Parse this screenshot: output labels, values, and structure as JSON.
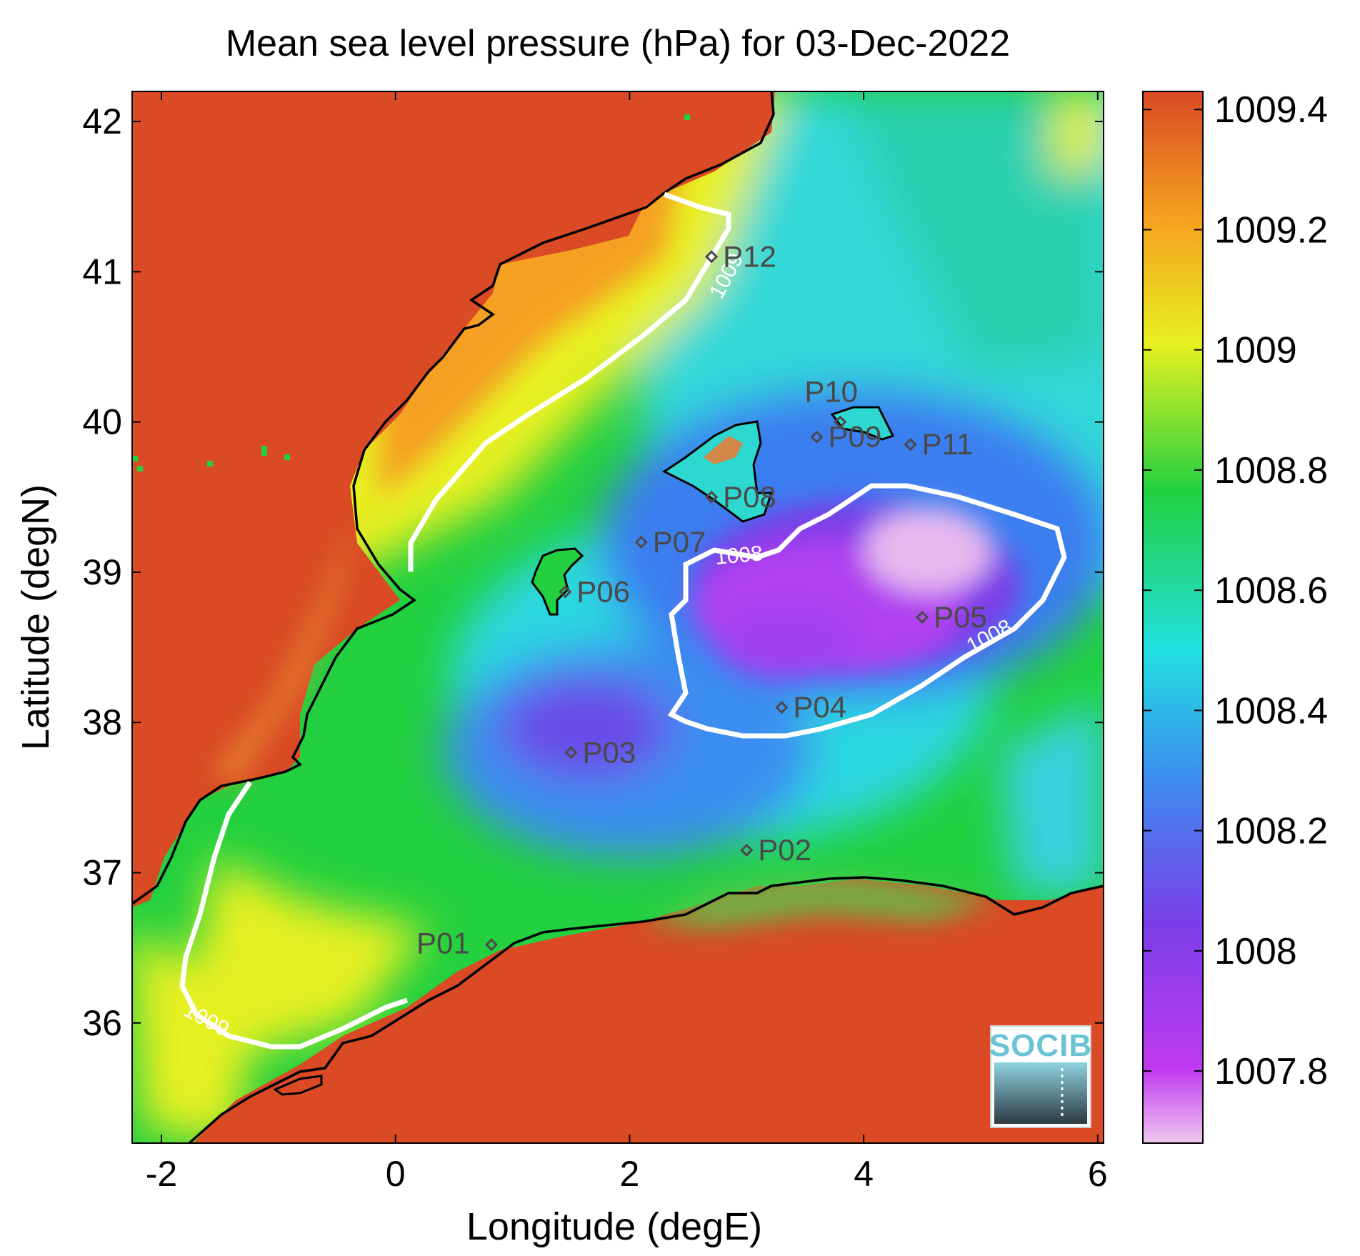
{
  "map": {
    "title": "Mean sea level pressure (hPa) for 03-Dec-2022",
    "xlabel": "Longitude (degE)",
    "ylabel": "Latitude (degN)",
    "xlim": [
      -2.25,
      6.05
    ],
    "ylim": [
      35.2,
      42.2
    ],
    "x_ticks": [
      "-2",
      "0",
      "2",
      "4",
      "6"
    ],
    "y_ticks": [
      "36",
      "37",
      "38",
      "39",
      "40",
      "41",
      "42"
    ],
    "land_color": "#d94a25",
    "colorbar": {
      "range": [
        1007.68,
        1009.43
      ],
      "ticks": [
        "1007.8",
        "1008",
        "1008.2",
        "1008.4",
        "1008.6",
        "1008.8",
        "1009",
        "1009.2",
        "1009.4"
      ],
      "colors": [
        "#f0c8f0",
        "#c03af0",
        "#7a3ee8",
        "#3b8ef0",
        "#22e0e0",
        "#22d040",
        "#e8f020",
        "#f5a020",
        "#d94a25"
      ]
    },
    "contours": [
      {
        "label": "1009"
      },
      {
        "label": "1009"
      },
      {
        "label": "1008"
      },
      {
        "label": "1008"
      }
    ],
    "stations": [
      {
        "id": "P01",
        "lon": 0.82,
        "lat": 36.52
      },
      {
        "id": "P02",
        "lon": 3.0,
        "lat": 37.15
      },
      {
        "id": "P03",
        "lon": 1.5,
        "lat": 37.8
      },
      {
        "id": "P04",
        "lon": 3.3,
        "lat": 38.1
      },
      {
        "id": "P05",
        "lon": 4.5,
        "lat": 38.7
      },
      {
        "id": "P06",
        "lon": 1.45,
        "lat": 38.87
      },
      {
        "id": "P07",
        "lon": 2.1,
        "lat": 39.2
      },
      {
        "id": "P08",
        "lon": 2.7,
        "lat": 39.5
      },
      {
        "id": "P09",
        "lon": 3.6,
        "lat": 39.9
      },
      {
        "id": "P10",
        "lon": 3.8,
        "lat": 40.0
      },
      {
        "id": "P11",
        "lon": 4.4,
        "lat": 39.85
      },
      {
        "id": "P12",
        "lon": 2.7,
        "lat": 41.1
      }
    ],
    "logo": "SOCIB"
  }
}
